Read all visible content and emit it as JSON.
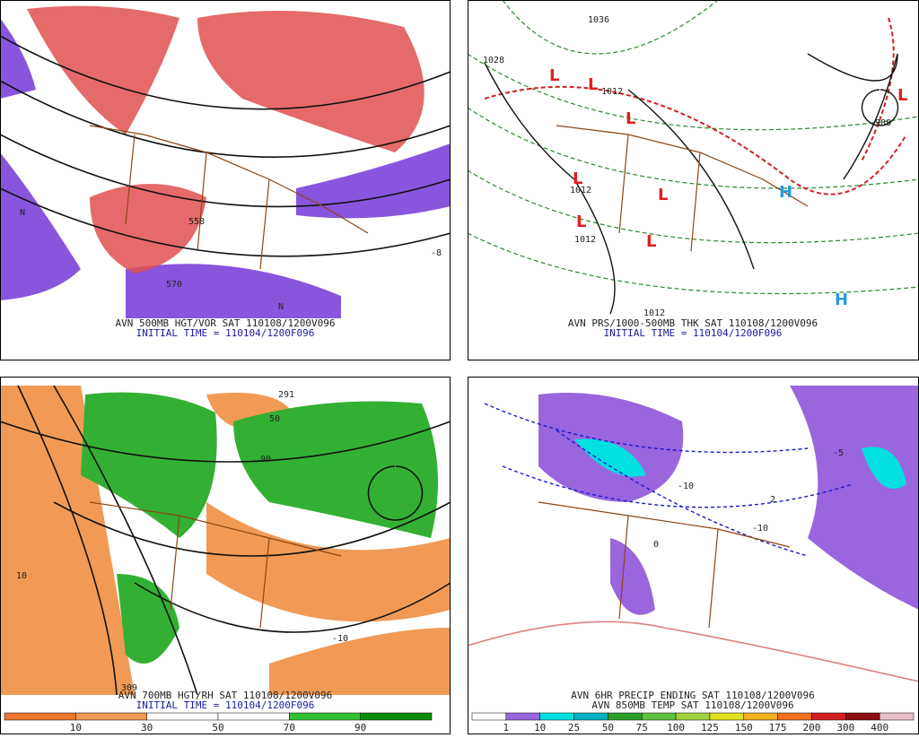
{
  "panels": [
    {
      "caption": "AVN 500MB HGT/VOR SAT 110108/1200V096",
      "initial_time": "INITIAL TIME = 110104/1200F096",
      "labels": [
        "570",
        "558",
        "-8",
        "N",
        "N"
      ]
    },
    {
      "caption": "AVN PRS/1000-500MB THK SAT 110108/1200V096",
      "initial_time": "INITIAL TIME = 110104/1200F096",
      "labels": [
        "1036",
        "1028",
        "1012",
        "1012",
        "1012",
        "1012",
        "988"
      ],
      "highs": [
        "H",
        "H"
      ],
      "lows": [
        "L",
        "L",
        "L",
        "L",
        "L",
        "L",
        "L",
        "L"
      ]
    },
    {
      "caption": "AVN 700MB HGT/RH SAT 110108/1200V096",
      "initial_time": "INITIAL TIME = 110104/1200F096",
      "labels": [
        "291",
        "50",
        "90",
        "10",
        "-10",
        "309"
      ],
      "colorbar": {
        "ticks": [
          10,
          30,
          50,
          70,
          90
        ],
        "colors": [
          "#e8762f",
          "#f09a55",
          "#ffffff",
          "#ffffff",
          "#33c033",
          "#0a8a0a"
        ]
      }
    },
    {
      "caption": "AVN 6HR PRECIP ENDING SAT 110108/1200V096",
      "caption2": "AVN 850MB TEMP SAT 110108/1200V096",
      "labels": [
        "-10",
        "-10",
        "2",
        "0",
        "-5"
      ],
      "colorbar": {
        "ticks": [
          1,
          10,
          25,
          50,
          75,
          100,
          125,
          150,
          175,
          200,
          300,
          400
        ],
        "colors": [
          "#ffffff",
          "#9966dd",
          "#00e0e0",
          "#00b0c0",
          "#2aa02a",
          "#60c040",
          "#a0d040",
          "#e0e020",
          "#f0b020",
          "#f07020",
          "#d02020",
          "#8a1010",
          "#e8c0c8"
        ]
      }
    }
  ]
}
